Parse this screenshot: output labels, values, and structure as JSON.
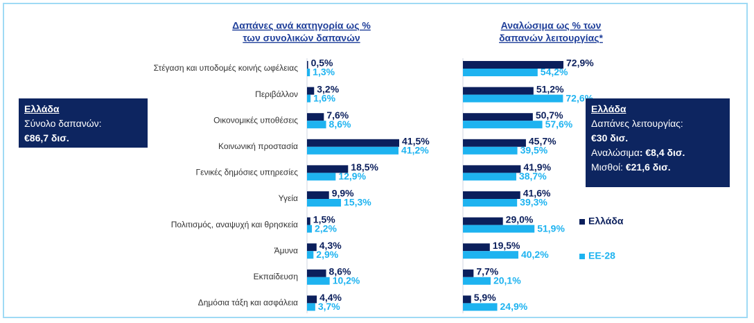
{
  "chart_data": [
    {
      "type": "bar",
      "orientation": "horizontal",
      "title": [
        "Δαπάνες ανά κατηγορία ως %",
        "των συνολικών δαπανών"
      ],
      "categories": [
        "Στέγαση και υποδομές κοινής ωφέλειας",
        "Περιβάλλον",
        "Οικονομικές υποθέσεις",
        "Κοινωνική προστασία",
        "Γενικές δημόσιες υπηρεσίες",
        "Υγεία",
        "Πολιτισμός, αναψυχή και θρησκεία",
        "Άμυνα",
        "Εκπαίδευση",
        "Δημόσια τάξη και ασφάλεια"
      ],
      "series": [
        {
          "name": "Ελλάδα",
          "color": "#0b1f5c",
          "values": [
            0.5,
            3.2,
            7.6,
            41.5,
            18.5,
            9.9,
            1.5,
            4.3,
            8.6,
            4.4
          ],
          "value_labels": [
            "0,5%",
            "3,2%",
            "7,6%",
            "41,5%",
            "18,5%",
            "9,9%",
            "1,5%",
            "4,3%",
            "8,6%",
            "4,4%"
          ]
        },
        {
          "name": "ΕΕ-28",
          "color": "#1eb3f0",
          "values": [
            1.3,
            1.6,
            8.6,
            41.2,
            12.9,
            15.3,
            2.2,
            2.9,
            10.2,
            3.7
          ],
          "value_labels": [
            "1,3%",
            "1,6%",
            "8,6%",
            "41,2%",
            "12,9%",
            "15,3%",
            "2,2%",
            "2,9%",
            "10,2%",
            "3,7%"
          ]
        }
      ]
    },
    {
      "type": "bar",
      "orientation": "horizontal",
      "title": [
        "Αναλώσιμα ως % των",
        "δαπανών λειτουργίας*"
      ],
      "categories": [
        null,
        null,
        null,
        null,
        null,
        null,
        null,
        null,
        null,
        null
      ],
      "series": [
        {
          "name": "Ελλάδα",
          "color": "#0b1f5c",
          "values": [
            72.9,
            51.2,
            50.7,
            45.7,
            41.9,
            41.6,
            29.0,
            19.5,
            7.7,
            5.9
          ],
          "value_labels": [
            "72,9%",
            "51,2%",
            "50,7%",
            "45,7%",
            "41,9%",
            "41,6%",
            "29,0%",
            "19,5%",
            "7,7%",
            "5,9%"
          ]
        },
        {
          "name": "ΕΕ-28",
          "color": "#1eb3f0",
          "values": [
            54.2,
            72.6,
            57.6,
            39.5,
            38.7,
            39.3,
            51.9,
            40.2,
            20.1,
            24.9
          ],
          "value_labels": [
            "54,2%",
            "72,6%",
            "57,6%",
            "39,5%",
            "38,7%",
            "39,3%",
            "51,9%",
            "40,2%",
            "20,1%",
            "24,9%"
          ]
        }
      ],
      "legend": true
    }
  ],
  "info_boxes": [
    {
      "lines": [
        [
          {
            "text": "Ελλάδα",
            "bold": true,
            "underline": true
          }
        ],
        [
          {
            "text": "Σύνολο δαπανών:"
          }
        ],
        [
          {
            "text": "€86,7 δισ.",
            "bold": true
          }
        ]
      ]
    },
    {
      "lines": [
        [
          {
            "text": "Ελλάδα",
            "bold": true,
            "underline": true
          }
        ],
        [
          {
            "text": "Δαπάνες λειτουργίας:"
          }
        ],
        [
          {
            "text": "€30 δισ.",
            "bold": true
          }
        ],
        [
          {
            "text": "Αναλώσιμα"
          },
          {
            "text": ": €8,4 δισ.",
            "bold": true
          }
        ],
        [
          {
            "text": "Μισθοί: "
          },
          {
            "text": "€21,6 δισ.",
            "bold": true
          }
        ]
      ]
    }
  ]
}
